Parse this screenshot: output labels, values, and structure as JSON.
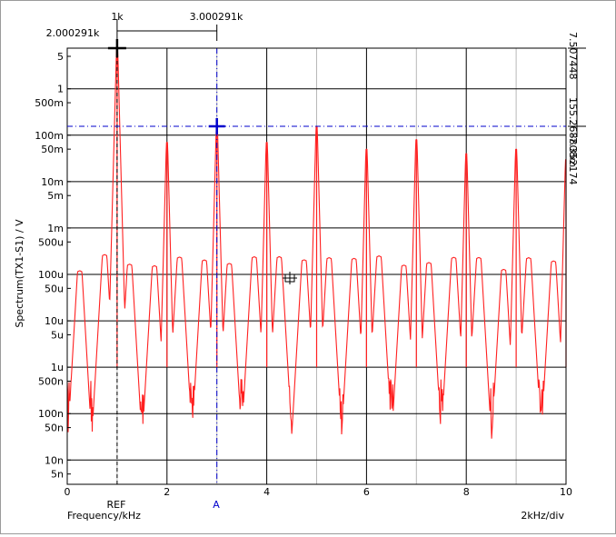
{
  "chart_data": {
    "type": "line",
    "title": "",
    "xlabel": "Frequency/kHz",
    "ylabel": "Spectrum(TX1-S1) / V",
    "x_unit_note": "2kHz/div",
    "xlim": [
      0,
      10
    ],
    "ylim": [
      3e-09,
      7.5
    ],
    "yscale": "log",
    "grid": true,
    "x_ticks": [
      "0",
      "2",
      "4",
      "6",
      "8",
      "10"
    ],
    "y_ticks": [
      "5n",
      "10n",
      "50n",
      "100n",
      "500n",
      "1u",
      "5u",
      "10u",
      "50u",
      "100u",
      "500u",
      "1m",
      "5m",
      "10m",
      "50m",
      "100m",
      "500m",
      "1",
      "5"
    ],
    "series": [
      {
        "color": "#ff2020",
        "fundamental_khz": 1.0,
        "odd_harmonics": [
          {
            "x": 1,
            "y": 7.5
          },
          {
            "x": 3,
            "y": 0.155
          },
          {
            "x": 5,
            "y": 0.155
          },
          {
            "x": 7,
            "y": 0.08
          },
          {
            "x": 9,
            "y": 0.05
          }
        ],
        "even_harmonics": [
          {
            "x": 2,
            "y": 0.07
          },
          {
            "x": 4,
            "y": 0.07
          },
          {
            "x": 6,
            "y": 0.05
          },
          {
            "x": 8,
            "y": 0.04
          },
          {
            "x": 10,
            "y": 0.03
          }
        ],
        "subharmonic_peak_level": 0.0002,
        "noise_floor": 1e-07
      }
    ],
    "cursors": {
      "ref": {
        "label": "REF",
        "x_value": "1k",
        "x_readout": "2.000291k",
        "color": "#000000"
      },
      "a": {
        "label": "A",
        "x_value": "3.000291k",
        "color": "#0000cc"
      },
      "y_readouts": [
        "7.507448",
        "155.268808m",
        "-7.352174"
      ]
    }
  }
}
